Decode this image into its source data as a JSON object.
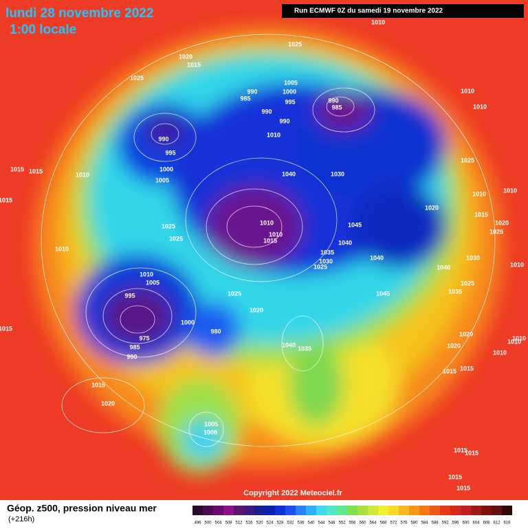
{
  "header": {
    "title": "lundi 28 novembre 2022",
    "subtitle": "1:00 locale",
    "run": "Run ECMWF 0Z du samedi 19 novembre 2022"
  },
  "footer": {
    "copyright": "Copyright 2022 Meteociel.fr",
    "caption": "Géop. z500, pression niveau mer",
    "lead": "(+216h)"
  },
  "legend": {
    "labels": [
      "496",
      "500",
      "504",
      "508",
      "512",
      "516",
      "520",
      "524",
      "528",
      "532",
      "536",
      "540",
      "544",
      "548",
      "552",
      "556",
      "560",
      "564",
      "568",
      "572",
      "576",
      "580",
      "584",
      "588",
      "592",
      "596",
      "600",
      "604",
      "608",
      "612",
      "616"
    ]
  },
  "map": {
    "isobar_labels": [
      "1010",
      "1025",
      "1020",
      "1015",
      "1025",
      "1005",
      "990",
      "1000",
      "985",
      "995",
      "990",
      "985",
      "990",
      "990",
      "1010",
      "1010",
      "990",
      "995",
      "1010",
      "1000",
      "1005",
      "1040",
      "1030",
      "1025",
      "1015",
      "1015",
      "1010",
      "1010",
      "1010",
      "1015",
      "1020",
      "1010",
      "1045",
      "1025",
      "1025",
      "1010",
      "1015",
      "1040",
      "1015",
      "1020",
      "1025",
      "1010",
      "1035",
      "1030",
      "1025",
      "1040",
      "1030",
      "1040",
      "1010",
      "1005",
      "1025",
      "1035",
      "1045",
      "995",
      "1025",
      "1020",
      "1000",
      "980",
      "1040",
      "1035",
      "975",
      "985",
      "990",
      "1020",
      "1010",
      "1020",
      "1015",
      "1010",
      "1015",
      "1015",
      "1015",
      "1020",
      "1005",
      "1000",
      "1015",
      "1015",
      "1015",
      "1015",
      "1010",
      "1010"
    ]
  }
}
